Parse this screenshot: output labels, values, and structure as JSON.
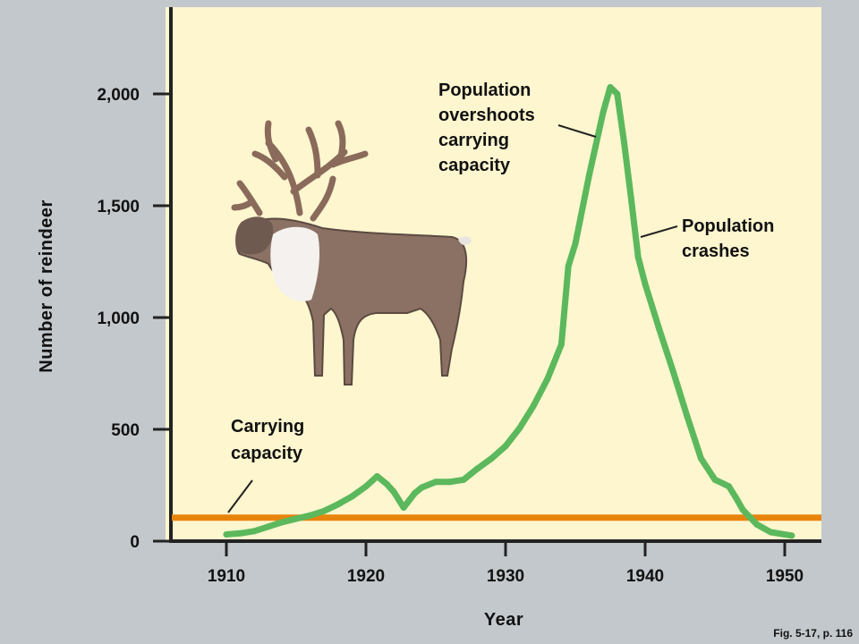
{
  "chart_data": {
    "type": "line",
    "xlabel": "Year",
    "ylabel": "Number of reindeer",
    "xlim": [
      1906,
      1953
    ],
    "ylim": [
      -100,
      2350
    ],
    "x_ticks": [
      1910,
      1920,
      1930,
      1940,
      1950
    ],
    "y_ticks": [
      0,
      500,
      1000,
      1500,
      2000
    ],
    "x_tick_labels": [
      "1910",
      "1920",
      "1930",
      "1940",
      "1950"
    ],
    "y_tick_labels": [
      "0",
      "500",
      "1,000",
      "1,500",
      "2,000"
    ],
    "series": [
      {
        "color": "#5cb85c",
        "x": [
          1910,
          1911,
          1912,
          1913,
          1914,
          1915,
          1916,
          1917,
          1918,
          1919,
          1920,
          1920.8,
          1921.5,
          1922,
          1922.7,
          1923.5,
          1924,
          1925,
          1926,
          1927,
          1927.5,
          1928,
          1929,
          1930,
          1931,
          1932,
          1933,
          1934,
          1934.5,
          1935,
          1936,
          1937,
          1937.5,
          1938,
          1938.5,
          1939,
          1939.5,
          1940,
          1941,
          1942,
          1943,
          1944,
          1945,
          1945.5,
          1946,
          1946.5,
          1947,
          1948,
          1949,
          1950.5
        ],
        "y": [
          30,
          35,
          45,
          65,
          85,
          100,
          115,
          135,
          165,
          200,
          245,
          290,
          255,
          220,
          150,
          215,
          240,
          265,
          265,
          275,
          300,
          325,
          370,
          425,
          505,
          605,
          725,
          880,
          1230,
          1330,
          1640,
          1920,
          2030,
          2000,
          1780,
          1530,
          1270,
          1150,
          950,
          760,
          560,
          370,
          275,
          260,
          245,
          195,
          140,
          75,
          40,
          25
        ]
      }
    ],
    "reference_lines": [
      {
        "y": 105,
        "color": "#e8840c"
      }
    ],
    "annotations": [
      {
        "text": [
          "Carrying",
          "capacity"
        ]
      },
      {
        "text": [
          "Population",
          "overshoots",
          "carrying",
          "capacity"
        ]
      },
      {
        "text": [
          "Population",
          "crashes"
        ]
      }
    ]
  },
  "colors": {
    "background": "#c3c8cc",
    "plot_area": "#fdf6cf",
    "axis": "#222222",
    "growth_curve": "#5cb85c",
    "carrying_capacity": "#e8840c"
  },
  "figure_caption": "Fig. 5-17, p. 116"
}
